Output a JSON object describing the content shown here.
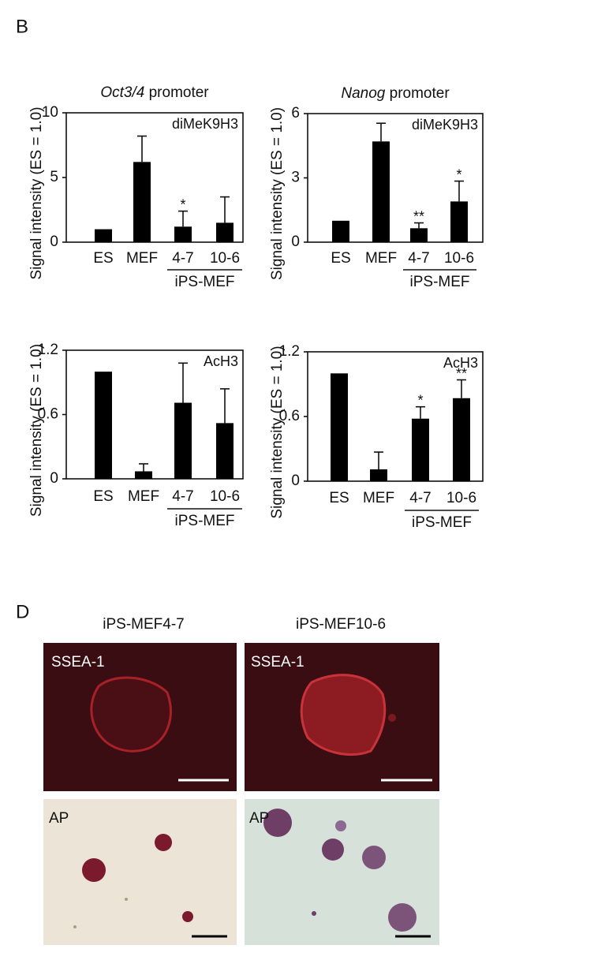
{
  "panel_b": {
    "letter": "B"
  },
  "chart_data": [
    {
      "type": "bar",
      "title": {
        "gene": "Oct3/4",
        "suffix": "promoter"
      },
      "ylabel": "Signal intensity (ES = 1.0)",
      "annotation": "diMeK9H3",
      "categories": [
        "ES",
        "MEF",
        "4-7",
        "10-6"
      ],
      "group_label": "iPS-MEF",
      "values": [
        1.0,
        6.2,
        1.2,
        1.5
      ],
      "errors": [
        null,
        2.0,
        1.2,
        2.0
      ],
      "significance": [
        null,
        null,
        "*",
        null
      ],
      "color": "#000000",
      "ylim": [
        0,
        10
      ],
      "yticks": [
        0,
        5,
        10
      ]
    },
    {
      "type": "bar",
      "title": {
        "gene": "Nanog",
        "suffix": "promoter"
      },
      "ylabel": "Signal intensity (ES = 1.0)",
      "annotation": "diMeK9H3",
      "categories": [
        "ES",
        "MEF",
        "4-7",
        "10-6"
      ],
      "group_label": "iPS-MEF",
      "values": [
        1.0,
        4.7,
        0.65,
        1.9
      ],
      "errors": [
        null,
        0.85,
        0.25,
        0.95
      ],
      "significance": [
        null,
        null,
        "**",
        "*"
      ],
      "color": "#000000",
      "ylim": [
        0,
        6
      ],
      "yticks": [
        0,
        3,
        6
      ]
    },
    {
      "type": "bar",
      "ylabel": "Signal intensity (ES = 1.0)",
      "annotation": "AcH3",
      "categories": [
        "ES",
        "MEF",
        "4-7",
        "10-6"
      ],
      "group_label": "iPS-MEF",
      "values": [
        1.0,
        0.07,
        0.71,
        0.52
      ],
      "errors": [
        null,
        0.07,
        0.37,
        0.32
      ],
      "significance": [
        null,
        null,
        null,
        null
      ],
      "color": "#000000",
      "ylim": [
        0,
        1.2
      ],
      "yticks": [
        0,
        0.6,
        1.2
      ]
    },
    {
      "type": "bar",
      "ylabel": "Signal intensity (ES = 1.0)",
      "annotation": "AcH3",
      "categories": [
        "ES",
        "MEF",
        "4-7",
        "10-6"
      ],
      "group_label": "iPS-MEF",
      "values": [
        1.0,
        0.11,
        0.58,
        0.77
      ],
      "errors": [
        null,
        0.16,
        0.11,
        0.17
      ],
      "significance": [
        null,
        null,
        "*",
        "**"
      ],
      "color": "#000000",
      "ylim": [
        0,
        1.2
      ],
      "yticks": [
        0,
        0.6,
        1.2
      ]
    }
  ],
  "panel_d": {
    "letter": "D",
    "columns": [
      "iPS-MEF4-7",
      "iPS-MEF10-6"
    ],
    "rows": [
      [
        "SSEA-1",
        "SSEA-1"
      ],
      [
        "AP",
        "AP"
      ]
    ]
  }
}
